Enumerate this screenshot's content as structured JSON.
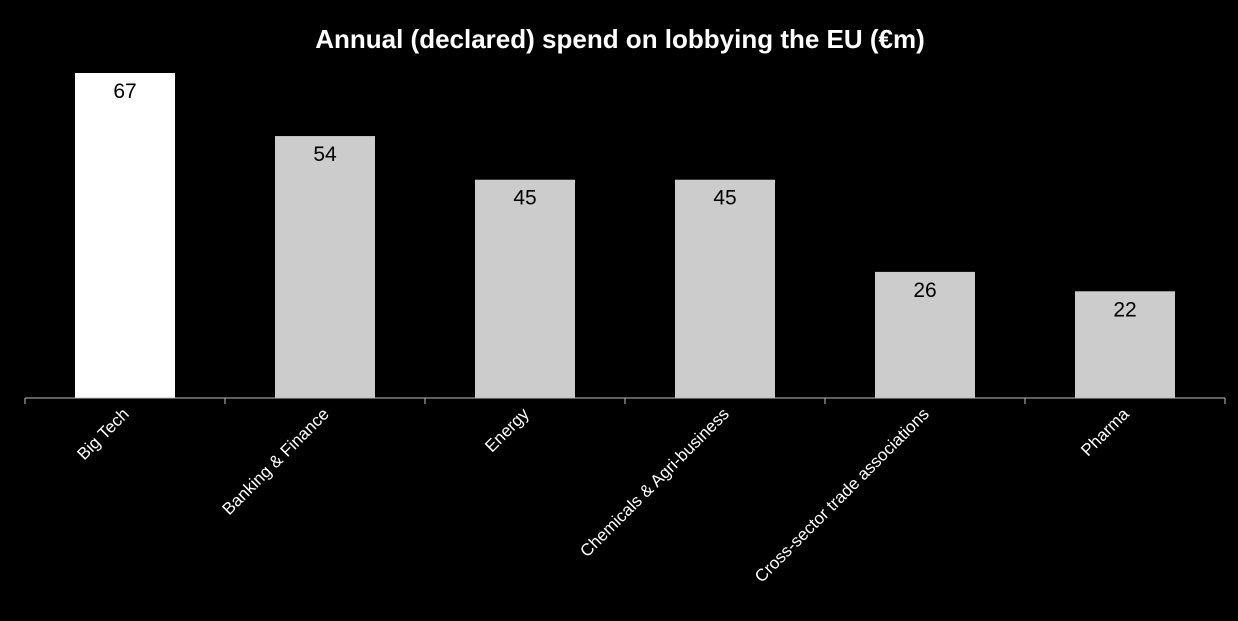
{
  "chart_data": {
    "type": "bar",
    "title": "Annual (declared) spend on lobbying the EU (€m)",
    "categories": [
      "Big Tech",
      "Banking & Finance",
      "Energy",
      "Chemicals & Agri-business",
      "Cross-sector trade associations",
      "Pharma"
    ],
    "values": [
      67,
      54,
      45,
      45,
      26,
      22
    ],
    "ylim": [
      0,
      67
    ],
    "grid": false,
    "legend": "none",
    "bar_colors": [
      "#ffffff",
      "#cccccc",
      "#cccccc",
      "#cccccc",
      "#cccccc",
      "#cccccc"
    ],
    "data_labels": true
  },
  "colors": {
    "background": "#000000",
    "title": "#ffffff",
    "axis": "#bfbfbf",
    "value_label": "#000000",
    "category_label": "#ffffff"
  }
}
